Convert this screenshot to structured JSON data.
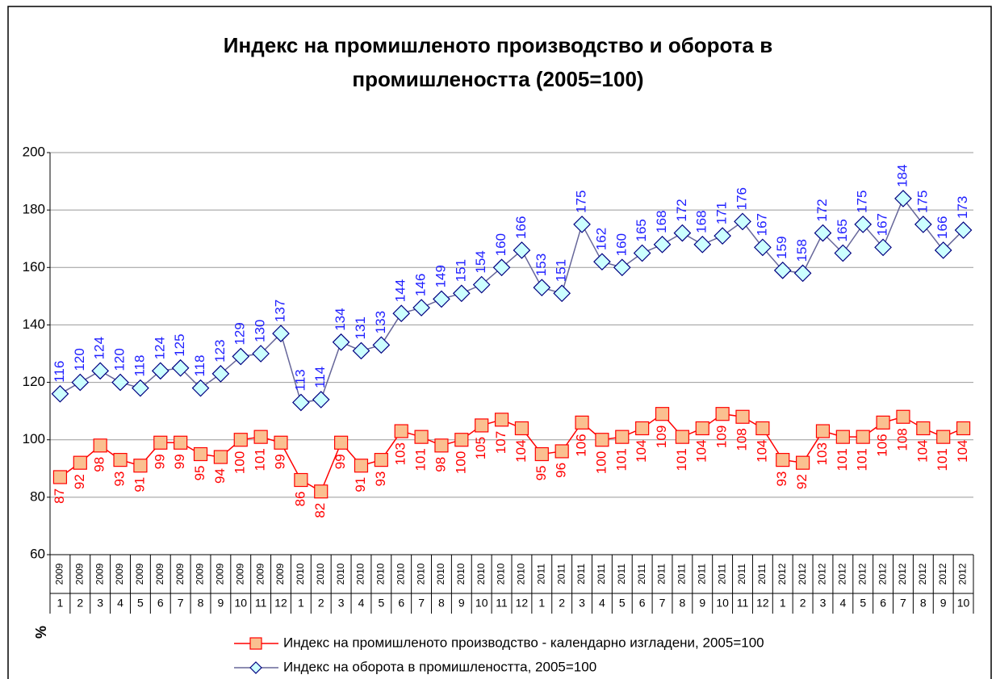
{
  "chart_data": {
    "type": "line",
    "title": "Индекс на промишленото производство и оборота в промишлеността (2005=100)",
    "title_lines": [
      "Индекс на промишленото производство и оборота в",
      "промишлеността (2005=100)"
    ],
    "y_label": "%",
    "categories": [
      "1",
      "2",
      "3",
      "4",
      "5",
      "6",
      "7",
      "8",
      "9",
      "10",
      "11",
      "12",
      "1",
      "2",
      "3",
      "4",
      "5",
      "6",
      "7",
      "8",
      "9",
      "10",
      "11",
      "12",
      "1",
      "2",
      "3",
      "4",
      "5",
      "6",
      "7",
      "8",
      "9",
      "10",
      "11",
      "12",
      "1",
      "2",
      "3",
      "4",
      "5",
      "6",
      "7",
      "8",
      "9",
      "10"
    ],
    "category_years": [
      "2009",
      "2009",
      "2009",
      "2009",
      "2009",
      "2009",
      "2009",
      "2009",
      "2009",
      "2009",
      "2009",
      "2009",
      "2010",
      "2010",
      "2010",
      "2010",
      "2010",
      "2010",
      "2010",
      "2010",
      "2010",
      "2010",
      "2010",
      "2010",
      "2011",
      "2011",
      "2011",
      "2011",
      "2011",
      "2011",
      "2011",
      "2011",
      "2011",
      "2011",
      "2011",
      "2011",
      "2012",
      "2012",
      "2012",
      "2012",
      "2012",
      "2012",
      "2012",
      "2012",
      "2012",
      "2012"
    ],
    "ylim": [
      60,
      200
    ],
    "yticks": [
      60,
      80,
      100,
      120,
      140,
      160,
      180,
      200
    ],
    "grid": true,
    "legend": "bottom",
    "series": [
      {
        "name": "Индекс на промишленото производство - календарно изгладени, 2005=100",
        "color": "#ff0000",
        "marker": "square",
        "marker_fill": "#fac090",
        "values": [
          87,
          92,
          98,
          93,
          91,
          99,
          99,
          95,
          94,
          100,
          101,
          99,
          86,
          82,
          99,
          91,
          93,
          103,
          101,
          98,
          100,
          105,
          107,
          104,
          95,
          96,
          106,
          100,
          101,
          104,
          109,
          101,
          104,
          109,
          108,
          104,
          93,
          92,
          103,
          101,
          101,
          106,
          108,
          104,
          101,
          104
        ]
      },
      {
        "name": "Индекс на оборота в промишлеността, 2005=100",
        "color": "#666699",
        "marker": "diamond",
        "marker_fill": "#ccffff",
        "label_color": "#1f1fff",
        "values": [
          116,
          120,
          124,
          120,
          118,
          124,
          125,
          118,
          123,
          129,
          130,
          137,
          113,
          114,
          134,
          131,
          133,
          144,
          146,
          149,
          151,
          154,
          160,
          166,
          153,
          151,
          175,
          162,
          160,
          165,
          168,
          172,
          168,
          171,
          176,
          167,
          159,
          158,
          172,
          165,
          175,
          167,
          184,
          175,
          166,
          173
        ]
      }
    ]
  }
}
